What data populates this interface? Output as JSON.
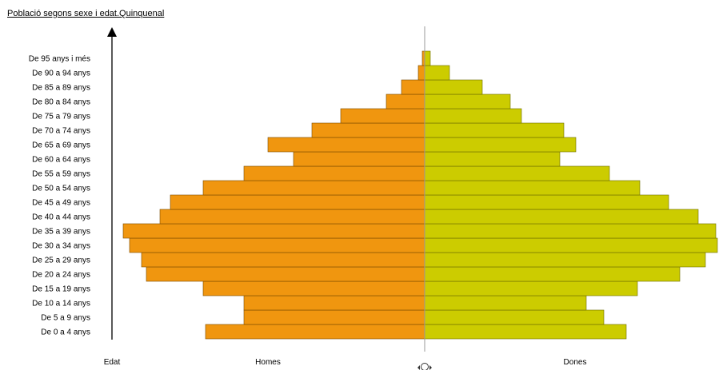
{
  "chart_data": {
    "type": "bar",
    "orientation": "horizontal",
    "title": "Població segons sexe i edat.Quinquenal",
    "ylabel": "Edat",
    "categories": [
      "De 0 a 4 anys",
      "De 5 a 9 anys",
      "De 10 a 14 anys",
      "De 15 a 19 anys",
      "De 20 a 24 anys",
      "De 25 a 29 anys",
      "De 30 a 34 anys",
      "De 35 a 39 anys",
      "De 40 a 44 anys",
      "De 45 a 49 anys",
      "De 50 a 54 anys",
      "De 55 a 59 anys",
      "De 60 a 64 anys",
      "De 65 a 69 anys",
      "De 70 a 74 anys",
      "De 75 a 79 anys",
      "De 80 a 84 anys",
      "De 85 a 89 anys",
      "De 90 a 94 anys",
      "De 95 anys i més"
    ],
    "series": [
      {
        "name": "Homes",
        "color": "#f0960f",
        "values": [
          274,
          226,
          226,
          277,
          348,
          354,
          369,
          377,
          331,
          318,
          277,
          226,
          164,
          196,
          141,
          105,
          48,
          29,
          8,
          3
        ]
      },
      {
        "name": "Dones",
        "color": "#cccc00",
        "values": [
          252,
          224,
          202,
          266,
          319,
          351,
          366,
          364,
          342,
          305,
          269,
          231,
          169,
          189,
          174,
          121,
          107,
          72,
          31,
          7
        ]
      }
    ],
    "xlim": [
      -379,
      366
    ],
    "grid": false,
    "legend": "none"
  }
}
